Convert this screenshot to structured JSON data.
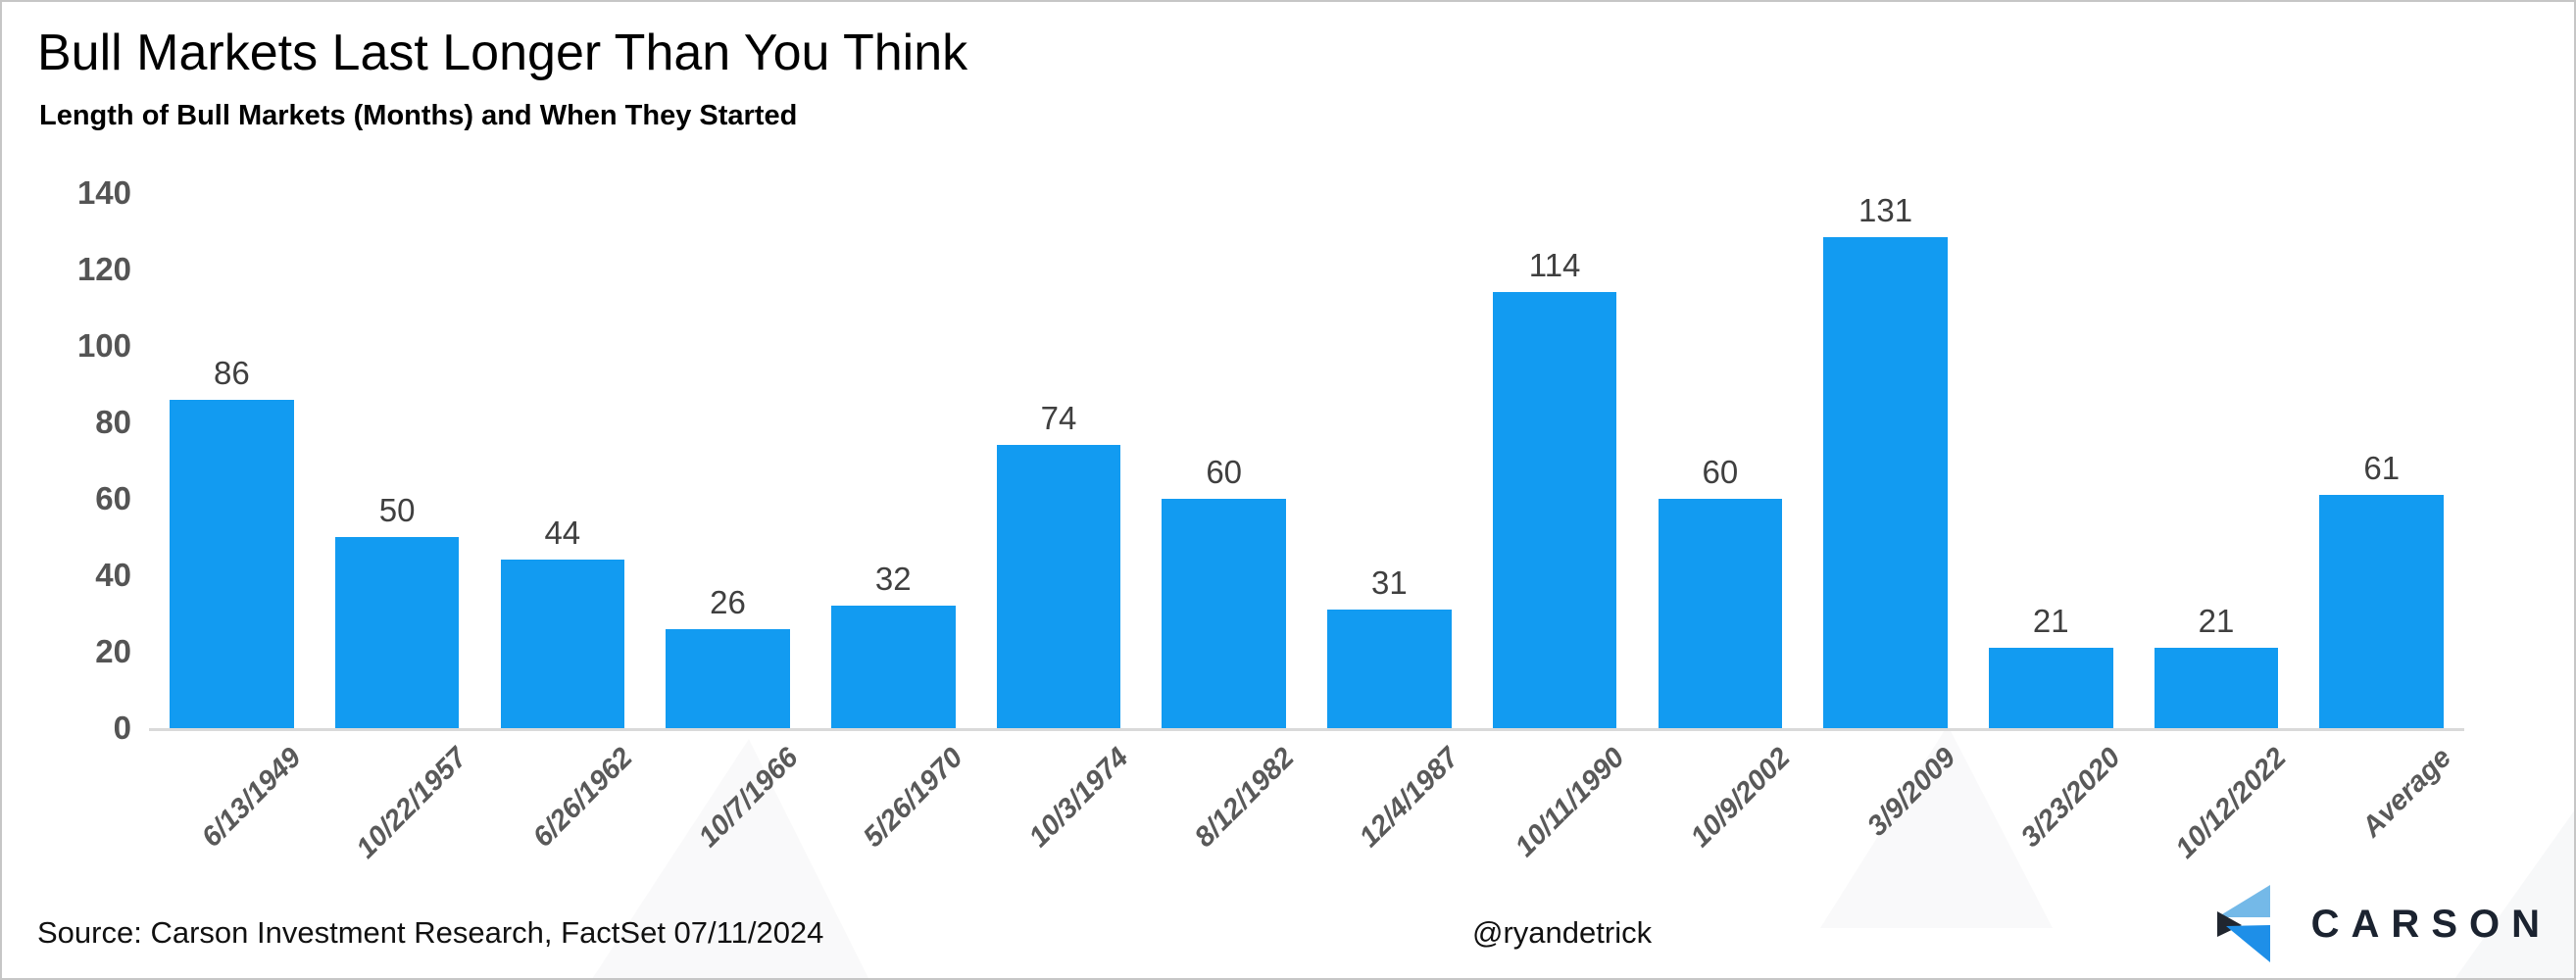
{
  "header": {
    "title": "Bull Markets Last Longer Than You Think",
    "subtitle": "Length of Bull Markets (Months) and When They Started"
  },
  "footer": {
    "source": "Source: Carson Investment Research, FactSet 07/11/2024",
    "handle": "@ryandetrick",
    "brand": "CARSON"
  },
  "colors": {
    "bar": "#129bf1",
    "axis_line": "#d9d9d9",
    "tick_text": "#545454",
    "value_text": "#3f3f3f",
    "xlabel_text": "#595959",
    "logo_light": "#74b9e8",
    "logo_dark": "#20262f",
    "logo_blue": "#1e8fe8",
    "logo_word": "#1b2330"
  },
  "chart_data": {
    "type": "bar",
    "title": "Bull Markets Last Longer Than You Think",
    "subtitle": "Length of Bull Markets (Months) and When They Started",
    "categories": [
      "6/13/1949",
      "10/22/1957",
      "6/26/1962",
      "10/7/1966",
      "5/26/1970",
      "10/3/1974",
      "8/12/1982",
      "12/4/1987",
      "10/11/1990",
      "10/9/2002",
      "3/9/2009",
      "3/23/2020",
      "10/12/2022",
      "Average"
    ],
    "values": [
      86,
      50,
      44,
      26,
      32,
      74,
      60,
      31,
      114,
      60,
      131,
      21,
      21,
      61
    ],
    "xlabel": "",
    "ylabel": "",
    "ylim": [
      0,
      140
    ],
    "yticks": [
      0,
      20,
      40,
      60,
      80,
      100,
      120,
      140
    ],
    "bar_color": "#129bf1",
    "grid": false,
    "legend": false,
    "value_labels": true,
    "xlabel_rotation": -45
  }
}
